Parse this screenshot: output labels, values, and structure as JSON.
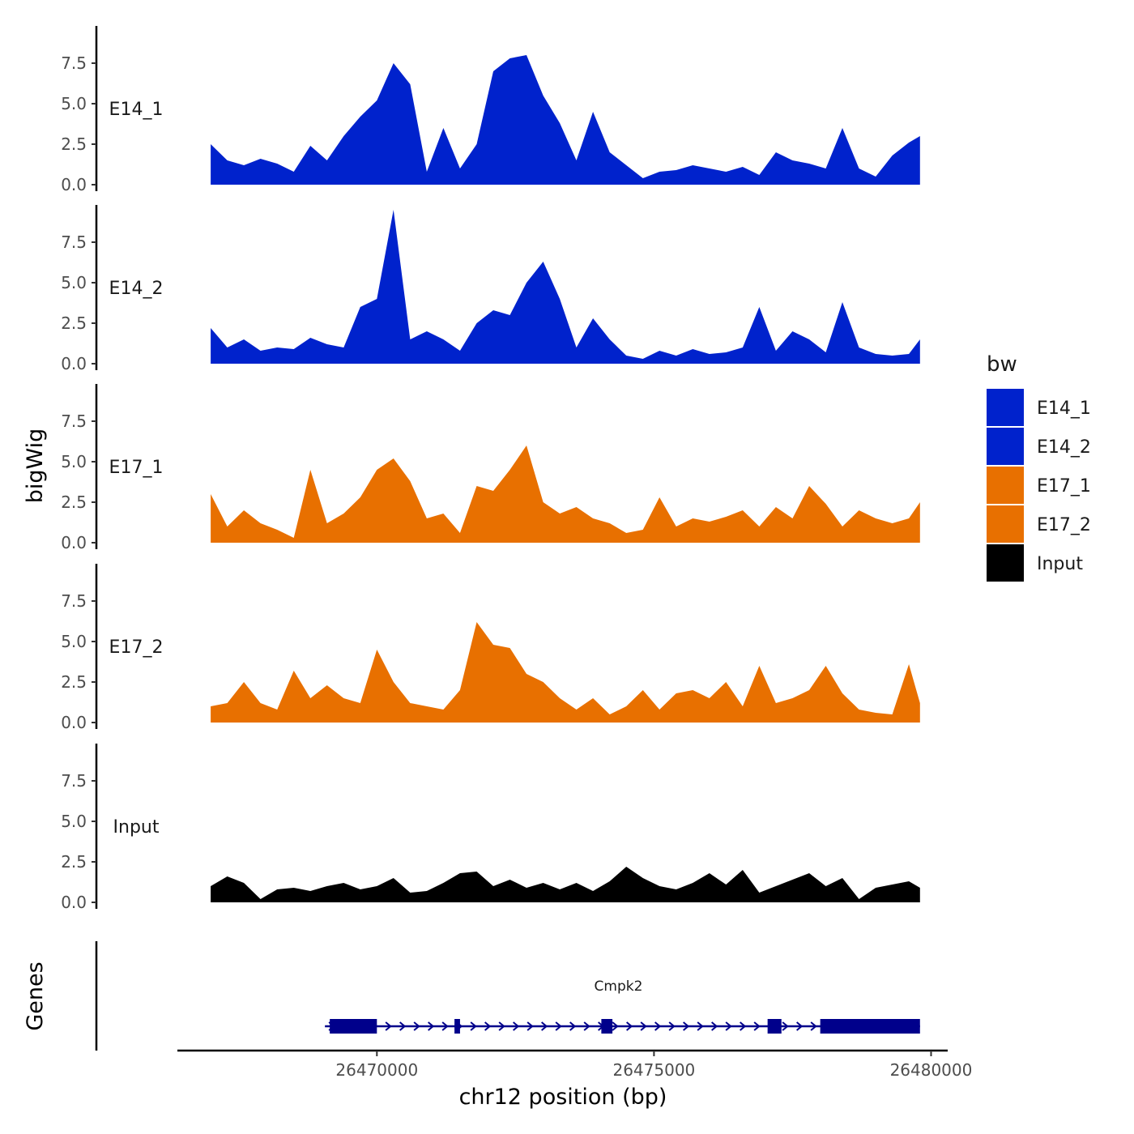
{
  "chart_data": {
    "type": "area",
    "title": "",
    "xlabel": "chr12 position (bp)",
    "ylabel": "bigWig",
    "genes_label": "Genes",
    "xlim": [
      26466400,
      26480300
    ],
    "x_ticks": [
      26470000,
      26475000,
      26480000
    ],
    "x_tick_labels": [
      "26470000",
      "26475000",
      "26480000"
    ],
    "ylim": [
      0,
      10
    ],
    "y_ticks": [
      0,
      2.5,
      5,
      7.5
    ],
    "y_tick_labels": [
      "0.0",
      "2.5",
      "5.0",
      "7.5"
    ],
    "legend": {
      "title": "bw",
      "position": "right",
      "items": [
        {
          "label": "E14_1",
          "color": "#0022cc"
        },
        {
          "label": "E14_2",
          "color": "#0022cc"
        },
        {
          "label": "E17_1",
          "color": "#e87000"
        },
        {
          "label": "E17_2",
          "color": "#e87000"
        },
        {
          "label": "Input",
          "color": "#000000"
        }
      ]
    },
    "x": [
      26467000,
      26467300,
      26467600,
      26467900,
      26468200,
      26468500,
      26468800,
      26469100,
      26469400,
      26469700,
      26470000,
      26470300,
      26470600,
      26470900,
      26471200,
      26471500,
      26471800,
      26472100,
      26472400,
      26472700,
      26473000,
      26473300,
      26473600,
      26473900,
      26474200,
      26474500,
      26474800,
      26475100,
      26475400,
      26475700,
      26476000,
      26476300,
      26476600,
      26476900,
      26477200,
      26477500,
      26477800,
      26478100,
      26478400,
      26478700,
      26479000,
      26479300,
      26479600,
      26479800
    ],
    "series": [
      {
        "name": "E14_1",
        "color": "#0022cc",
        "values": [
          2.5,
          1.5,
          1.2,
          1.6,
          1.3,
          0.8,
          2.4,
          1.5,
          3.0,
          4.2,
          5.2,
          7.5,
          6.2,
          0.8,
          3.5,
          1.0,
          2.5,
          7.0,
          7.8,
          8.0,
          5.5,
          3.8,
          1.5,
          4.5,
          2.0,
          1.2,
          0.4,
          0.8,
          0.9,
          1.2,
          1.0,
          0.8,
          1.1,
          0.6,
          2.0,
          1.5,
          1.3,
          1.0,
          3.5,
          1.0,
          0.5,
          1.8,
          2.6,
          3.0
        ]
      },
      {
        "name": "E14_2",
        "color": "#0022cc",
        "values": [
          2.2,
          1.0,
          1.5,
          0.8,
          1.0,
          0.9,
          1.6,
          1.2,
          1.0,
          3.5,
          4.0,
          9.5,
          1.5,
          2.0,
          1.5,
          0.8,
          2.5,
          3.3,
          3.0,
          5.0,
          6.3,
          4.0,
          1.0,
          2.8,
          1.5,
          0.5,
          0.3,
          0.8,
          0.5,
          0.9,
          0.6,
          0.7,
          1.0,
          3.5,
          0.8,
          2.0,
          1.5,
          0.7,
          3.8,
          1.0,
          0.6,
          0.5,
          0.6,
          1.5
        ]
      },
      {
        "name": "E17_1",
        "color": "#e87000",
        "values": [
          3.0,
          1.0,
          2.0,
          1.2,
          0.8,
          0.3,
          4.5,
          1.2,
          1.8,
          2.8,
          4.5,
          5.2,
          3.8,
          1.5,
          1.8,
          0.6,
          3.5,
          3.2,
          4.5,
          6.0,
          2.5,
          1.8,
          2.2,
          1.5,
          1.2,
          0.6,
          0.8,
          2.8,
          1.0,
          1.5,
          1.3,
          1.6,
          2.0,
          1.0,
          2.2,
          1.5,
          3.5,
          2.4,
          1.0,
          2.0,
          1.5,
          1.2,
          1.5,
          2.5
        ]
      },
      {
        "name": "E17_2",
        "color": "#e87000",
        "values": [
          1.0,
          1.2,
          2.5,
          1.2,
          0.8,
          3.2,
          1.5,
          2.3,
          1.5,
          1.2,
          4.5,
          2.5,
          1.2,
          1.0,
          0.8,
          2.0,
          6.2,
          4.8,
          4.6,
          3.0,
          2.5,
          1.5,
          0.8,
          1.5,
          0.5,
          1.0,
          2.0,
          0.8,
          1.8,
          2.0,
          1.5,
          2.5,
          1.0,
          3.5,
          1.2,
          1.5,
          2.0,
          3.5,
          1.8,
          0.8,
          0.6,
          0.5,
          3.6,
          1.2
        ]
      },
      {
        "name": "Input",
        "color": "#000000",
        "values": [
          1.0,
          1.6,
          1.2,
          0.2,
          0.8,
          0.9,
          0.7,
          1.0,
          1.2,
          0.8,
          1.0,
          1.5,
          0.6,
          0.7,
          1.2,
          1.8,
          1.9,
          1.0,
          1.4,
          0.9,
          1.2,
          0.8,
          1.2,
          0.7,
          1.3,
          2.2,
          1.5,
          1.0,
          0.8,
          1.2,
          1.8,
          1.1,
          2.0,
          0.6,
          1.0,
          1.4,
          1.8,
          1.0,
          1.5,
          0.2,
          0.9,
          1.1,
          1.3,
          0.9
        ]
      }
    ],
    "gene": {
      "name": "Cmpk2",
      "color": "#00008b",
      "start": 26469150,
      "end": 26479800,
      "strand": "+",
      "exons": [
        [
          26469150,
          26470000
        ],
        [
          26471400,
          26471500
        ],
        [
          26474050,
          26474250
        ],
        [
          26477050,
          26477300
        ],
        [
          26478000,
          26479800
        ]
      ]
    }
  }
}
